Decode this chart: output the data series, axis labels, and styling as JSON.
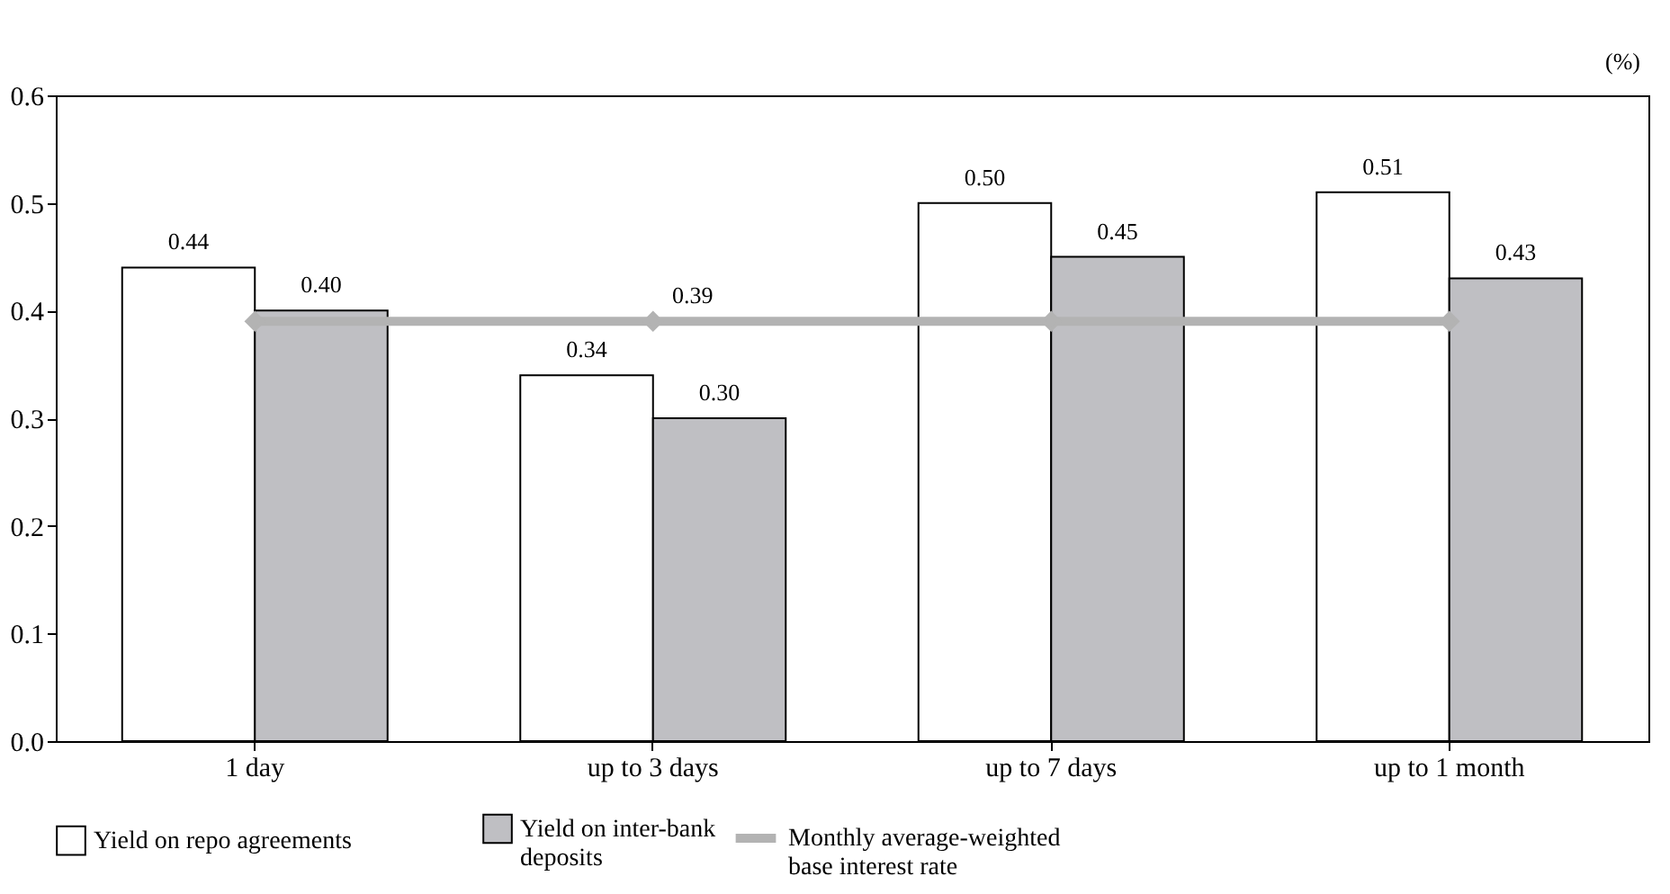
{
  "chart_data": {
    "type": "bar",
    "ylabel": "(%)",
    "categories": [
      "1 day",
      "up to 3 days",
      "up to 7 days",
      "up to 1 month"
    ],
    "series": [
      {
        "name": "Yield on repo agreements",
        "color": "#ffffff",
        "values": [
          0.44,
          0.34,
          0.5,
          0.51
        ],
        "value_labels": [
          "0.44",
          "0.34",
          "0.50",
          "0.51"
        ]
      },
      {
        "name": "Yield on inter-bank deposits",
        "color": "#bfbfc3",
        "values": [
          0.4,
          0.3,
          0.45,
          0.43
        ],
        "value_labels": [
          "0.40",
          "0.30",
          "0.45",
          "0.43"
        ]
      },
      {
        "name": "Monthly average-weighted base interest rate",
        "type": "line",
        "color": "#b3b3b3",
        "marker": "diamond",
        "values": [
          0.39,
          0.39,
          0.39,
          0.39
        ],
        "value_labels": [
          null,
          "0.39",
          null,
          null
        ]
      }
    ],
    "ylim": [
      0,
      0.6
    ],
    "yticks": [
      {
        "value": 0,
        "label": "0.0"
      },
      {
        "value": 0.1,
        "label": "0.1"
      },
      {
        "value": 0.2,
        "label": "0.2"
      },
      {
        "value": 0.3,
        "label": "0.3"
      },
      {
        "value": 0.4,
        "label": "0.4"
      },
      {
        "value": 0.5,
        "label": "0.5"
      },
      {
        "value": 0.6,
        "label": "0.6"
      }
    ],
    "grid": false,
    "legend": "bottom"
  }
}
